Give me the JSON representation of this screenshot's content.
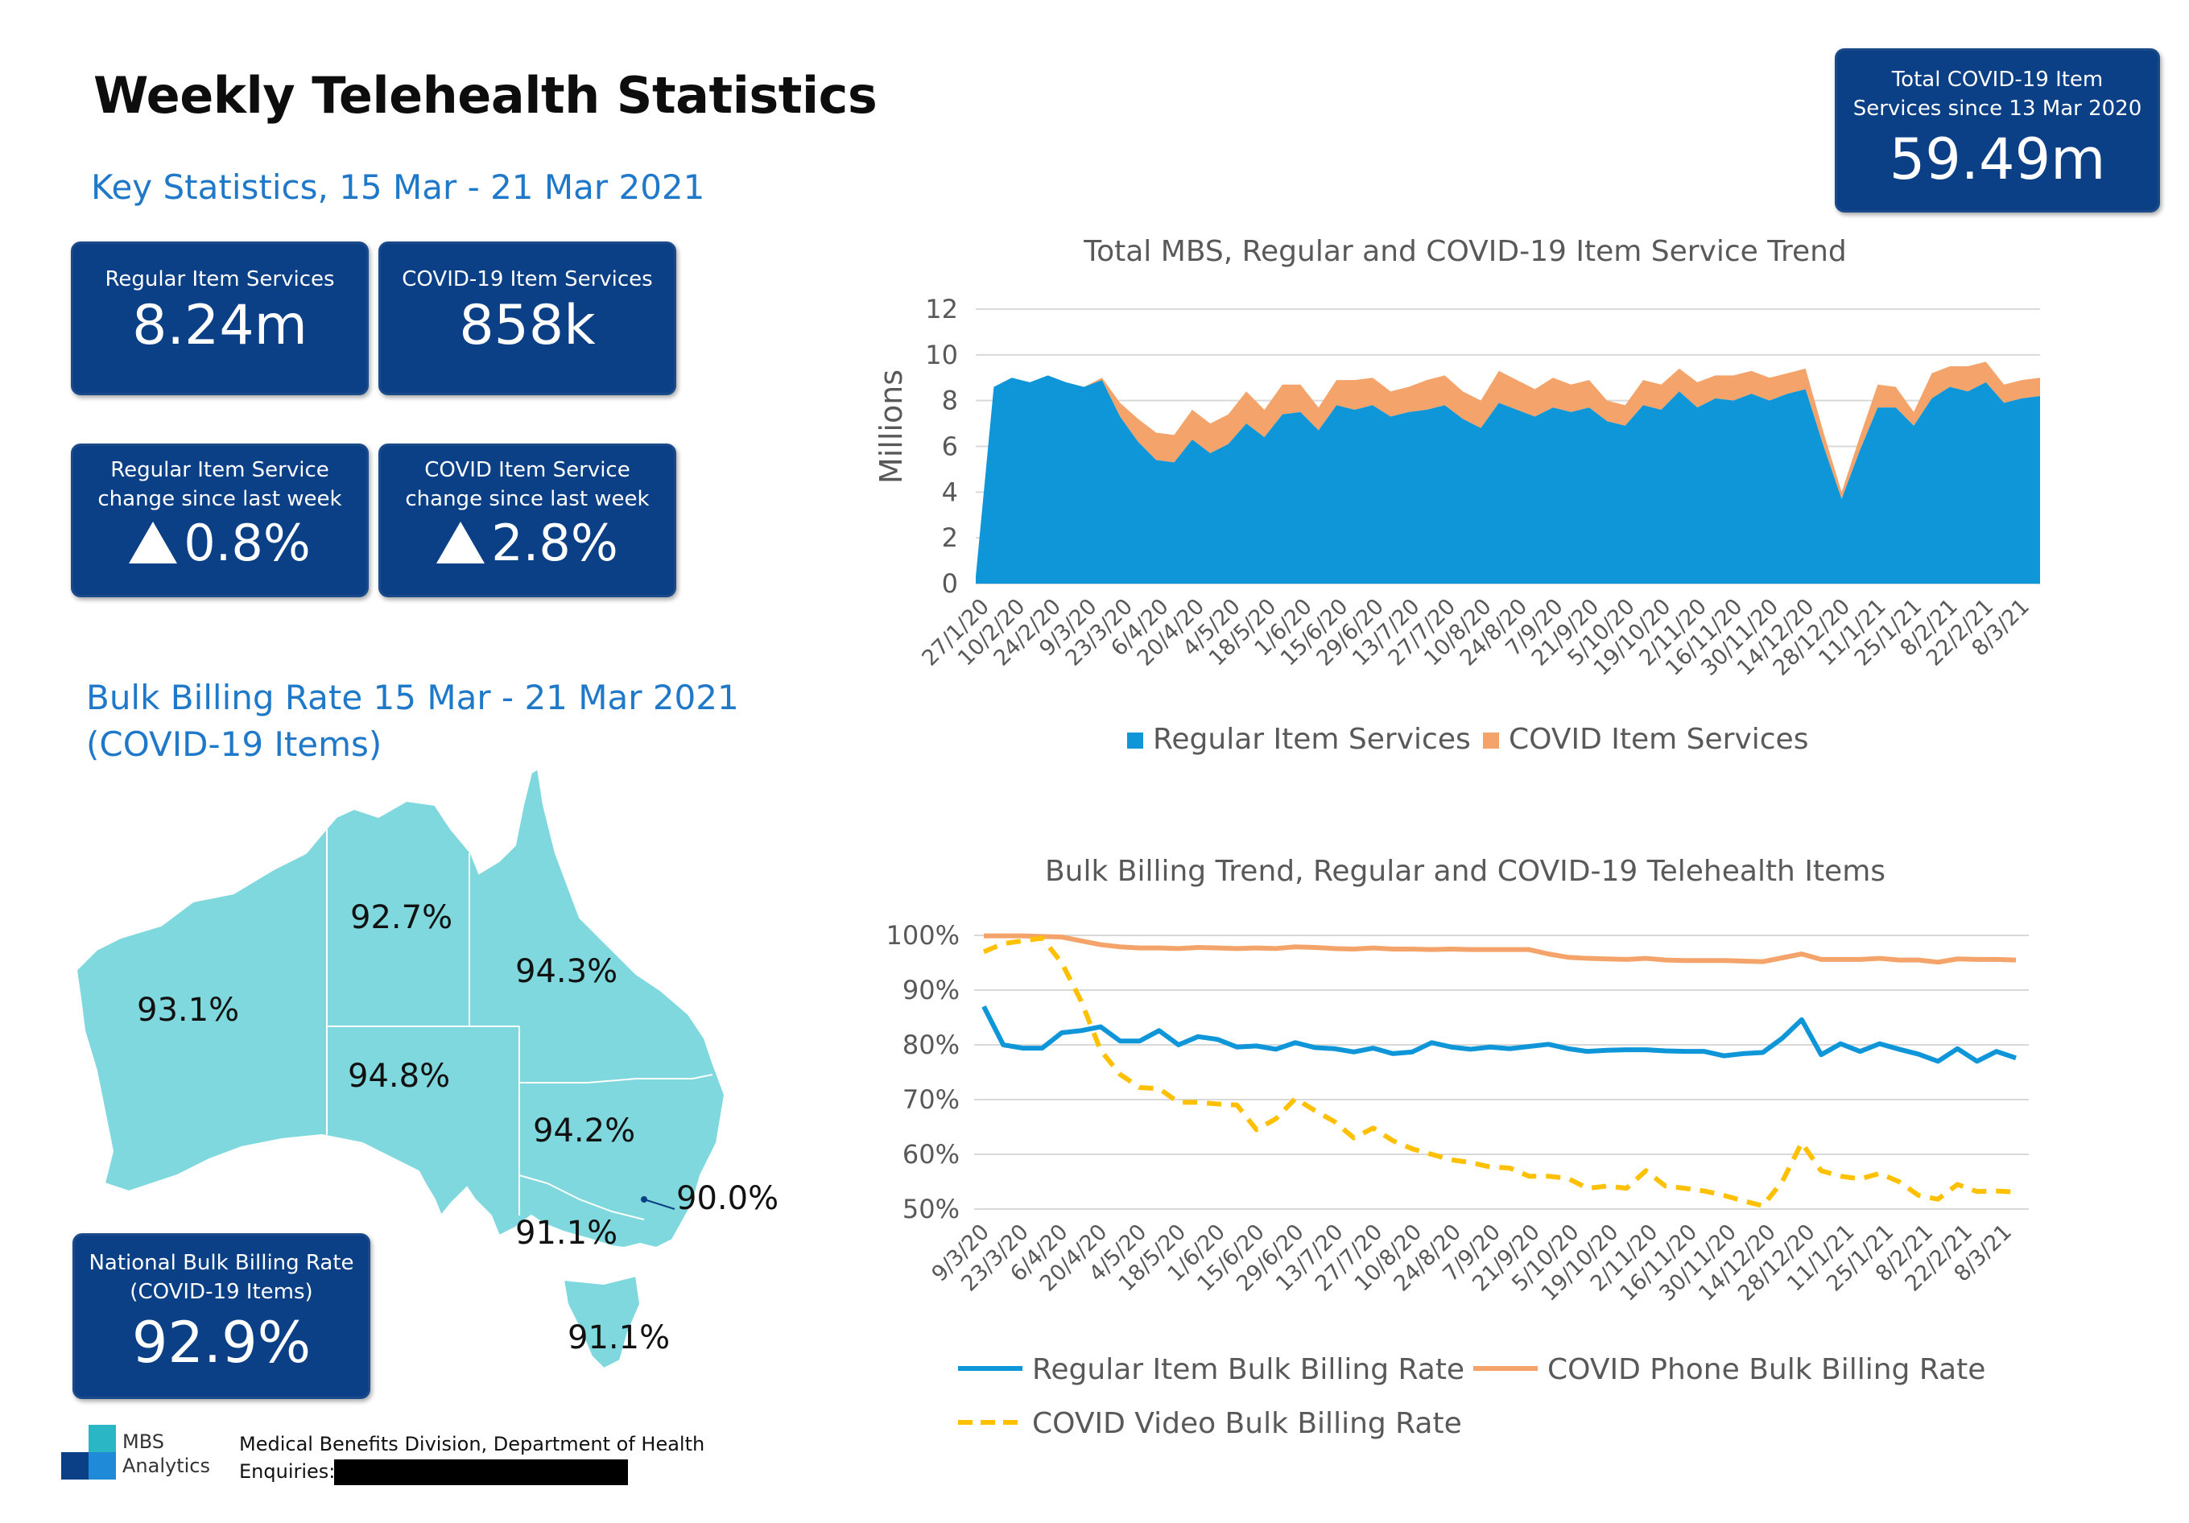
{
  "page_title": "Weekly Telehealth Statistics",
  "key_stats": {
    "title": "Key Statistics, 15 Mar - 21 Mar 2021",
    "regular_services": {
      "label": "Regular Item Services",
      "value": "8.24m"
    },
    "covid_services": {
      "label": "COVID-19 Item Services",
      "value": "858k"
    },
    "regular_change": {
      "label_line1": "Regular Item Service",
      "label_line2": "change since last week",
      "value": "0.8%"
    },
    "covid_change": {
      "label_line1": "COVID Item Service",
      "label_line2": "change since last week",
      "value": "2.8%"
    }
  },
  "total_covid": {
    "label_line1": "Total COVID-19 Item",
    "label_line2": "Services since 13 Mar 2020",
    "value": "59.49m"
  },
  "bulk_billing": {
    "title_line1": "Bulk Billing Rate 15 Mar - 21 Mar 2021",
    "title_line2": "(COVID-19 Items)",
    "states": {
      "wa": "93.1%",
      "nt": "92.7%",
      "qld": "94.3%",
      "sa": "94.8%",
      "nsw": "94.2%",
      "act": "90.0%",
      "vic": "91.1%",
      "tas": "91.1%"
    },
    "national": {
      "label_line1": "National Bulk Billing Rate",
      "label_line2": "(COVID-19 Items)",
      "value": "92.9%"
    }
  },
  "footer": {
    "logo_line1": "MBS",
    "logo_line2": "Analytics",
    "division": "Medical Benefits Division, Department of Health",
    "enquiries": "Enquiries:"
  },
  "colors": {
    "box": "#0b3f86",
    "regular": "#0f96d9",
    "covid": "#f4a46a",
    "video": "#ffc000",
    "map": "#7fd8dd",
    "accent": "#1f78c8"
  },
  "chart_data": [
    {
      "type": "area",
      "title": "Total MBS, Regular and COVID-19 Item Service Trend",
      "ylabel": "Millions",
      "ylim": [
        0,
        12
      ],
      "yticks": [
        "0",
        "2",
        "4",
        "6",
        "8",
        "10",
        "12"
      ],
      "xtick_labels": [
        "27/1/20",
        "10/2/20",
        "24/2/20",
        "9/3/20",
        "23/3/20",
        "6/4/20",
        "20/4/20",
        "4/5/20",
        "18/5/20",
        "1/6/20",
        "15/6/20",
        "29/6/20",
        "13/7/20",
        "27/7/20",
        "10/8/20",
        "24/8/20",
        "7/9/20",
        "21/9/20",
        "5/10/20",
        "19/10/20",
        "2/11/20",
        "16/11/20",
        "30/11/20",
        "14/12/20",
        "28/12/20",
        "11/1/21",
        "25/1/21",
        "8/2/21",
        "22/2/21",
        "8/3/21"
      ],
      "stacked": true,
      "series": [
        {
          "name": "Regular Item Services",
          "values": [
            0.3,
            8.6,
            9.0,
            8.8,
            9.1,
            8.8,
            8.6,
            8.9,
            7.3,
            6.2,
            5.4,
            5.3,
            6.3,
            5.7,
            6.1,
            7.0,
            6.4,
            7.4,
            7.5,
            6.7,
            7.8,
            7.6,
            7.8,
            7.3,
            7.5,
            7.6,
            7.8,
            7.2,
            6.8,
            7.9,
            7.6,
            7.3,
            7.7,
            7.5,
            7.7,
            7.1,
            6.9,
            7.8,
            7.6,
            8.4,
            7.7,
            8.1,
            8.0,
            8.3,
            8.0,
            8.3,
            8.5,
            6.0,
            3.7,
            5.8,
            7.7,
            7.7,
            6.9,
            8.1,
            8.6,
            8.4,
            8.8,
            7.9,
            8.1,
            8.2
          ]
        },
        {
          "name": "COVID Item Services",
          "values": [
            0,
            0,
            0,
            0,
            0,
            0,
            0,
            0.1,
            0.6,
            1.0,
            1.2,
            1.2,
            1.3,
            1.3,
            1.3,
            1.4,
            1.2,
            1.3,
            1.2,
            1.0,
            1.1,
            1.3,
            1.2,
            1.1,
            1.1,
            1.3,
            1.3,
            1.2,
            1.2,
            1.4,
            1.3,
            1.2,
            1.3,
            1.2,
            1.2,
            0.9,
            0.9,
            1.1,
            1.1,
            1.0,
            1.1,
            1.0,
            1.1,
            1.0,
            1.0,
            0.9,
            0.9,
            0.6,
            0.3,
            0.6,
            1.0,
            0.9,
            0.6,
            1.1,
            0.9,
            1.1,
            0.9,
            0.8,
            0.8,
            0.8
          ]
        }
      ]
    },
    {
      "type": "line",
      "title": "Bulk Billing Trend, Regular and COVID-19 Telehealth Items",
      "ylim": [
        50,
        100
      ],
      "yticks": [
        "50%",
        "60%",
        "70%",
        "80%",
        "90%",
        "100%"
      ],
      "xtick_labels": [
        "9/3/20",
        "23/3/20",
        "6/4/20",
        "20/4/20",
        "4/5/20",
        "18/5/20",
        "1/6/20",
        "15/6/20",
        "29/6/20",
        "13/7/20",
        "27/7/20",
        "10/8/20",
        "24/8/20",
        "7/9/20",
        "21/9/20",
        "5/10/20",
        "19/10/20",
        "2/11/20",
        "16/11/20",
        "30/11/20",
        "14/12/20",
        "28/12/20",
        "11/1/21",
        "25/1/21",
        "8/2/21",
        "22/2/21",
        "8/3/21"
      ],
      "series": [
        {
          "name": "Regular Item Bulk Billing Rate",
          "style": "solid",
          "values": [
            87.0,
            80.0,
            79.4,
            79.4,
            82.2,
            82.6,
            83.3,
            80.7,
            80.7,
            82.6,
            80.0,
            81.5,
            81.0,
            79.6,
            79.8,
            79.2,
            80.4,
            79.5,
            79.3,
            78.7,
            79.4,
            78.4,
            78.7,
            80.4,
            79.6,
            79.2,
            79.6,
            79.3,
            79.7,
            80.1,
            79.3,
            78.8,
            79.0,
            79.1,
            79.1,
            78.9,
            78.8,
            78.8,
            78.0,
            78.4,
            78.6,
            81.2,
            84.6,
            78.2,
            80.2,
            78.8,
            80.2,
            79.2,
            78.3,
            77.0,
            79.3,
            77.0,
            78.8,
            77.6
          ]
        },
        {
          "name": "COVID Phone Bulk Billing Rate",
          "style": "solid",
          "values": [
            99.9,
            99.9,
            99.9,
            99.8,
            99.7,
            99.0,
            98.3,
            97.9,
            97.7,
            97.7,
            97.6,
            97.8,
            97.7,
            97.6,
            97.7,
            97.6,
            97.9,
            97.8,
            97.6,
            97.5,
            97.7,
            97.5,
            97.5,
            97.4,
            97.5,
            97.4,
            97.4,
            97.4,
            97.4,
            96.6,
            96.0,
            95.8,
            95.7,
            95.6,
            95.8,
            95.5,
            95.4,
            95.4,
            95.4,
            95.3,
            95.2,
            95.9,
            96.6,
            95.6,
            95.6,
            95.6,
            95.8,
            95.5,
            95.5,
            95.1,
            95.7,
            95.6,
            95.6,
            95.5
          ]
        },
        {
          "name": "COVID Video Bulk Billing Rate",
          "style": "dashed",
          "values": [
            97.0,
            98.5,
            99.0,
            99.5,
            95.0,
            88.0,
            79.0,
            74.6,
            72.2,
            72.0,
            69.5,
            69.5,
            69.2,
            69.0,
            64.5,
            66.5,
            70.2,
            68.0,
            66.0,
            63.0,
            64.8,
            62.5,
            61.0,
            60.0,
            59.0,
            58.5,
            57.7,
            57.5,
            56.0,
            56.0,
            55.6,
            53.8,
            54.2,
            53.8,
            57.0,
            54.2,
            53.8,
            53.3,
            52.5,
            51.5,
            50.6,
            55.0,
            62.1,
            57.0,
            56.0,
            55.5,
            56.5,
            55.0,
            52.5,
            51.8,
            54.5,
            53.2,
            53.3,
            53.1
          ]
        }
      ]
    }
  ]
}
